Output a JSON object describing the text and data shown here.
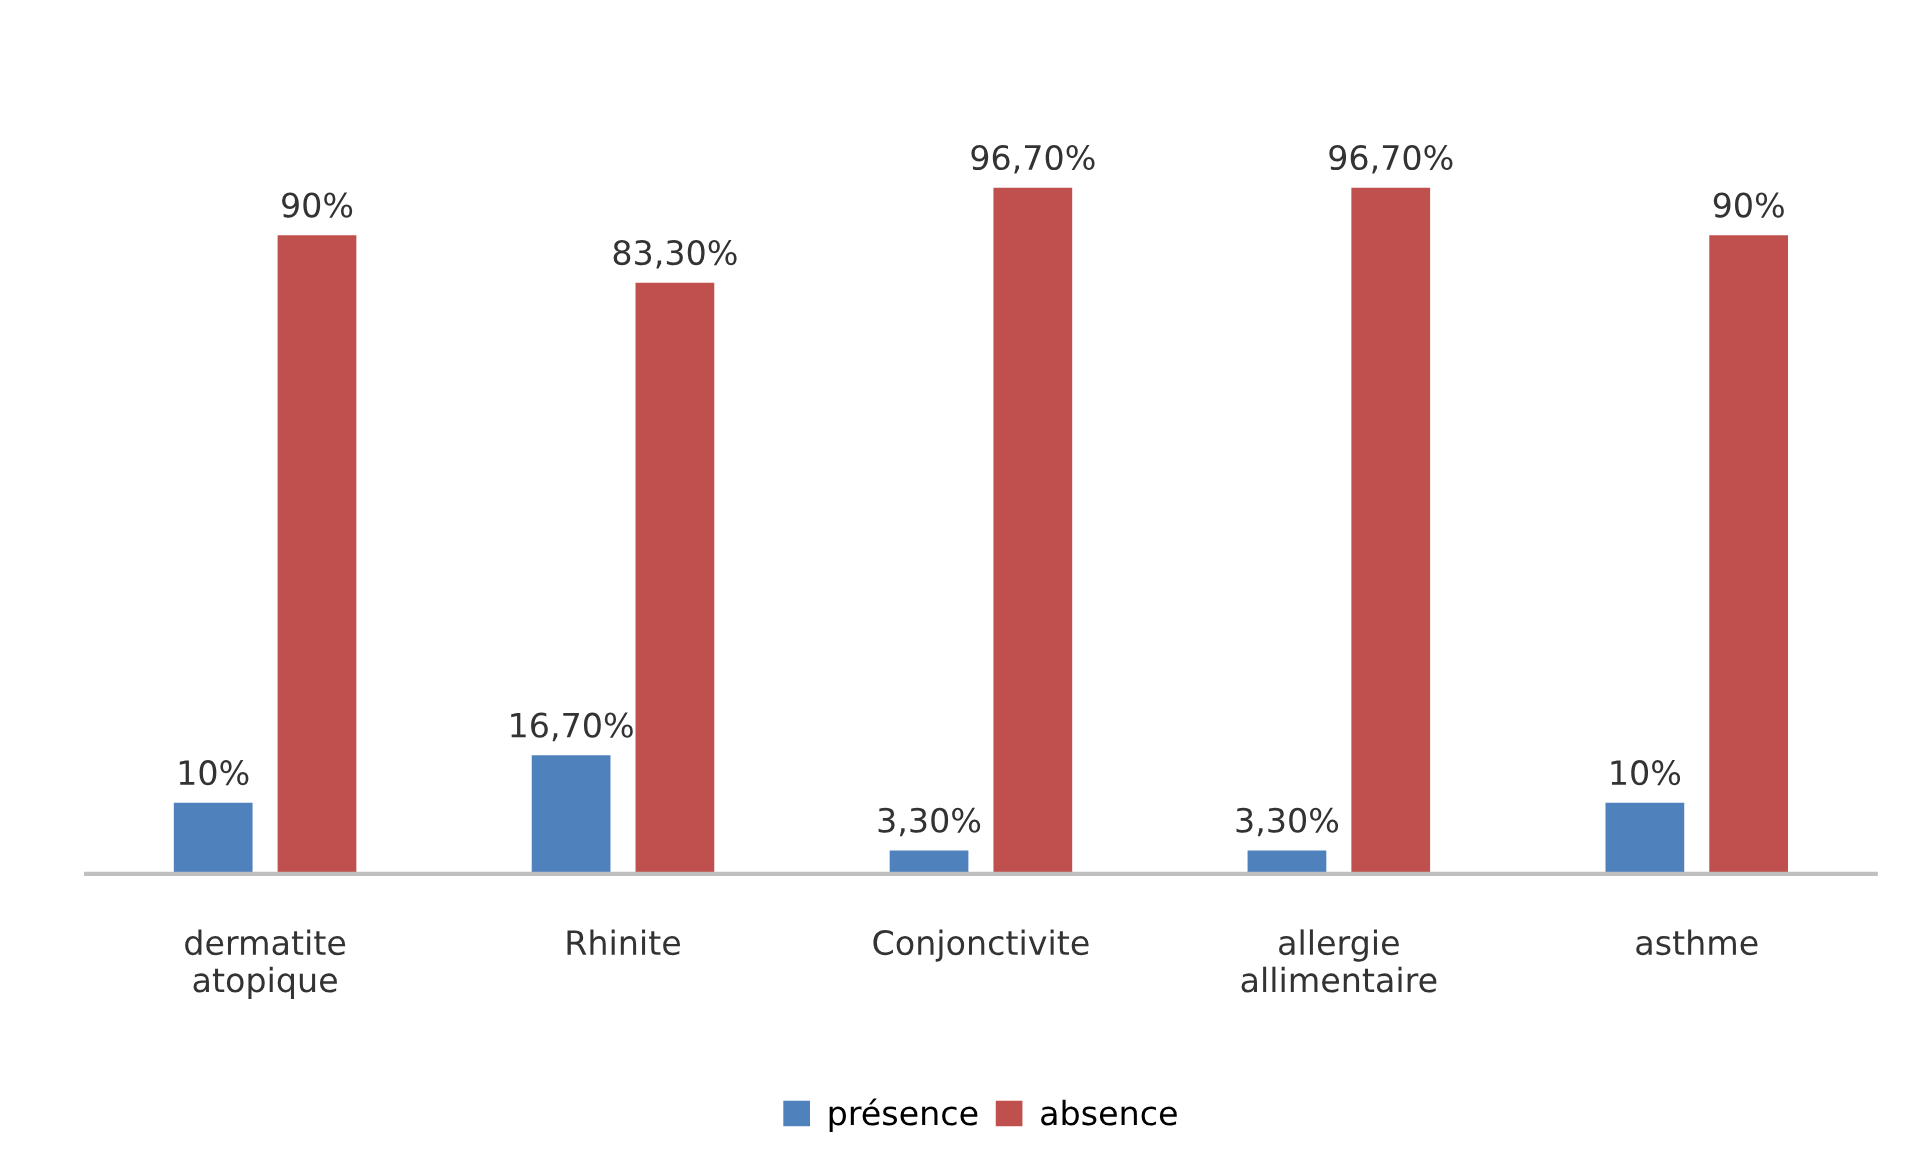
{
  "chart_data": {
    "type": "bar",
    "categories": [
      "dermatite\natopique",
      "Rhinite",
      "Conjonctivite",
      "allergie\nallimentaire",
      "asthme"
    ],
    "series": [
      {
        "name": "présence",
        "color": "#4f81bd",
        "values": [
          10,
          16.7,
          3.3,
          3.3,
          10
        ],
        "value_labels": [
          "10%",
          "16,70%",
          "3,30%",
          "3,30%",
          "10%"
        ]
      },
      {
        "name": "absence",
        "color": "#c0504d",
        "values": [
          90,
          83.3,
          96.7,
          96.7,
          90
        ],
        "value_labels": [
          "90%",
          "83,30%",
          "96,70%",
          "96,70%",
          "90%"
        ]
      }
    ],
    "legend": "bottom"
  }
}
